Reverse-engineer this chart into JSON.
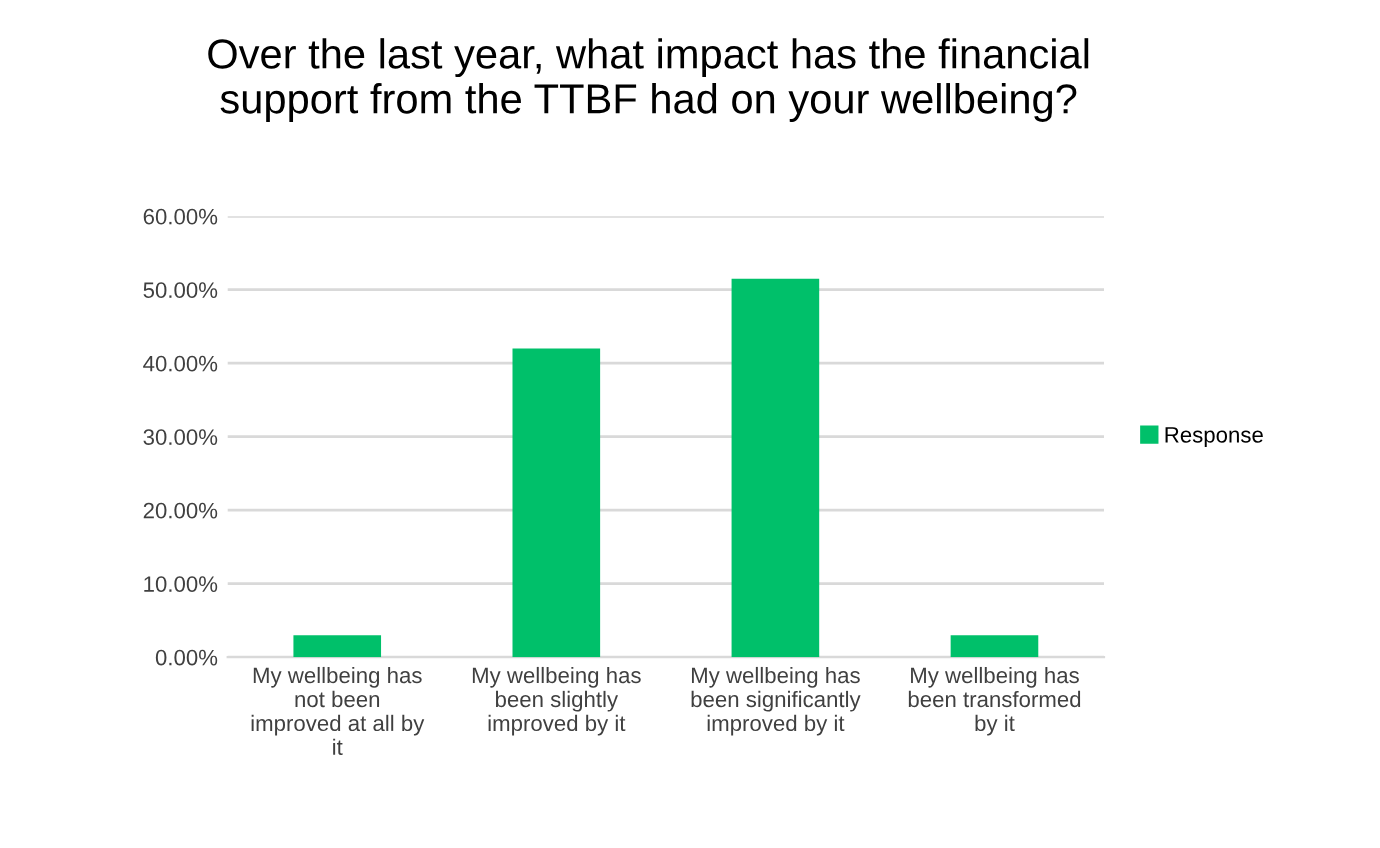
{
  "chart_data": {
    "type": "bar",
    "title": "Over the last year, what impact has the financial\nsupport from the TTBF had on your wellbeing?",
    "categories": [
      "My wellbeing has\nnot been\nimproved at all by\nit",
      "My wellbeing has\nbeen slightly\nimproved by it",
      "My wellbeing has\nbeen significantly\nimproved by it",
      "My wellbeing has\nbeen transformed\nby it"
    ],
    "series": [
      {
        "name": "Response",
        "color": "#00c06a",
        "values": [
          3,
          42,
          51.5,
          3
        ]
      }
    ],
    "ylim": [
      0,
      60
    ],
    "yticks": [
      {
        "value": 0,
        "label": "0.00%"
      },
      {
        "value": 10,
        "label": "10.00%"
      },
      {
        "value": 20,
        "label": "20.00%"
      },
      {
        "value": 30,
        "label": "30.00%"
      },
      {
        "value": 40,
        "label": "40.00%"
      },
      {
        "value": 50,
        "label": "50.00%"
      },
      {
        "value": 60,
        "label": "60.00%"
      }
    ],
    "grid": "y",
    "legend": "right"
  }
}
